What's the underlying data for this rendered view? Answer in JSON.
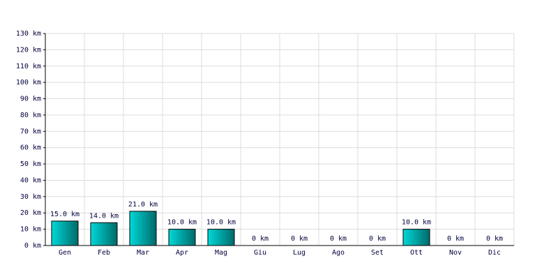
{
  "chart_data": {
    "type": "bar",
    "categories": [
      "Gen",
      "Feb",
      "Mar",
      "Apr",
      "Mag",
      "Giu",
      "Lug",
      "Ago",
      "Set",
      "Ott",
      "Nov",
      "Dic"
    ],
    "values": [
      15,
      14,
      21,
      10,
      10,
      0,
      0,
      0,
      0,
      10,
      0,
      0
    ],
    "value_labels": [
      "15.0 km",
      "14.0 km",
      "21.0 km",
      "10.0 km",
      "10.0 km",
      "0 km",
      "0 km",
      "0 km",
      "0 km",
      "10.0 km",
      "0 km",
      "0 km"
    ],
    "color": "#00d8d8",
    "ylim": [
      0,
      130
    ],
    "yticks": [
      {
        "value": 0,
        "label": "0 km"
      },
      {
        "value": 10,
        "label": "10 km"
      },
      {
        "value": 20,
        "label": "20 km"
      },
      {
        "value": 30,
        "label": "30 km"
      },
      {
        "value": 40,
        "label": "40 km"
      },
      {
        "value": 50,
        "label": "50 km"
      },
      {
        "value": 60,
        "label": "60 km"
      },
      {
        "value": 70,
        "label": "70 km"
      },
      {
        "value": 80,
        "label": "80 km"
      },
      {
        "value": 90,
        "label": "90 km"
      },
      {
        "value": 100,
        "label": "100 km"
      },
      {
        "value": 110,
        "label": "110 km"
      },
      {
        "value": 120,
        "label": "120 km"
      },
      {
        "value": 130,
        "label": "130 km"
      }
    ],
    "grid": true
  }
}
